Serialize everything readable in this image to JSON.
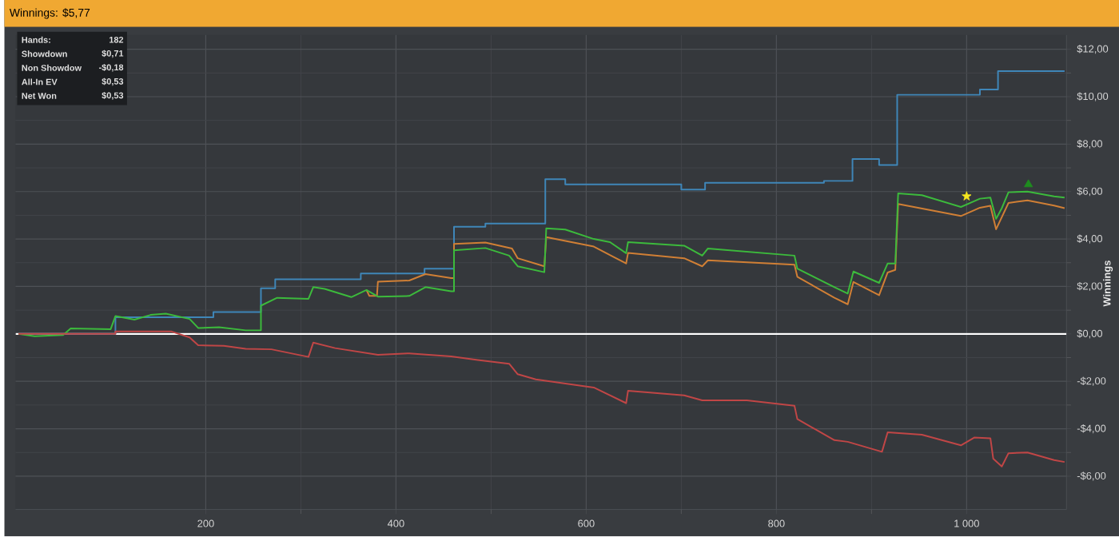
{
  "chart_data": {
    "type": "line",
    "title": "Winnings: $5,77",
    "ylabel": "Winnings",
    "annotations": [
      "Hands:",
      "182",
      "Showdown",
      "$0,71",
      "Non Showdow",
      "-$0,18",
      "All-In EV",
      "$0,53",
      "Net Won",
      "$0,53"
    ],
    "xlim": [
      0,
      1105
    ],
    "ylim": [
      -7.4,
      12.6
    ],
    "xticks": [
      200,
      400,
      600,
      800,
      {
        "value": 1000,
        "label": "1 000"
      }
    ],
    "yticks": [
      {
        "value": -6,
        "label": "-$6,00"
      },
      {
        "value": -4,
        "label": "-$4,00"
      },
      {
        "value": -2,
        "label": "-$2,00"
      },
      {
        "value": 0,
        "label": "$0,00"
      },
      {
        "value": 2,
        "label": "$2,00"
      },
      {
        "value": 4,
        "label": "$4,00"
      },
      {
        "value": 6,
        "label": "$6,00"
      },
      {
        "value": 8,
        "label": "$8,00"
      },
      {
        "value": 10,
        "label": "$10,00"
      },
      {
        "value": 12,
        "label": "$12,00"
      }
    ],
    "grid": true,
    "marker": "none",
    "line_style": "solid",
    "ref_lines": [
      {
        "axis": "y",
        "value": 0,
        "color": "#ffffff"
      }
    ],
    "series": [
      {
        "color": "#3f86b8",
        "x": [
          3,
          105,
          105,
          208,
          208,
          258,
          258,
          273,
          273,
          363,
          363,
          430,
          430,
          461,
          461,
          494,
          494,
          557,
          557,
          578,
          578,
          700,
          700,
          725,
          725,
          850,
          850,
          880,
          880,
          908,
          908,
          927,
          927,
          1014,
          1014,
          1033,
          1033,
          1103
        ],
        "values": [
          0,
          0,
          0.7,
          0.7,
          0.92,
          0.92,
          1.92,
          1.92,
          2.3,
          2.3,
          2.55,
          2.55,
          2.75,
          2.75,
          4.52,
          4.52,
          4.65,
          4.65,
          6.52,
          6.52,
          6.3,
          6.3,
          6.08,
          6.08,
          6.37,
          6.37,
          6.45,
          6.45,
          7.37,
          7.37,
          7.12,
          7.12,
          10.08,
          10.08,
          10.3,
          10.3,
          11.08,
          11.08
        ]
      },
      {
        "color": "#d07f35",
        "x": [
          369,
          372,
          380,
          381,
          414,
          431,
          458,
          461,
          461,
          494,
          522,
          528,
          556,
          558,
          608,
          642,
          644,
          703,
          722,
          728,
          819,
          822,
          861,
          875,
          881,
          908,
          917,
          925,
          928,
          994,
          1014,
          1025,
          1031,
          1044,
          1064,
          1092,
          1103
        ],
        "values": [
          1.85,
          1.6,
          1.6,
          2.2,
          2.25,
          2.52,
          2.35,
          2.35,
          3.79,
          3.85,
          3.6,
          3.19,
          2.85,
          4.08,
          3.68,
          2.97,
          3.41,
          3.19,
          2.85,
          3.1,
          2.92,
          2.41,
          1.52,
          1.25,
          2.19,
          1.63,
          2.59,
          2.7,
          5.48,
          4.97,
          5.32,
          5.4,
          4.41,
          5.52,
          5.63,
          5.41,
          5.3
        ]
      },
      {
        "color": "#3cba3c",
        "x": [
          3,
          20,
          50,
          58,
          100,
          105,
          125,
          142,
          158,
          183,
          192,
          214,
          242,
          258,
          258,
          275,
          308,
          313,
          325,
          353,
          369,
          381,
          414,
          431,
          458,
          461,
          461,
          494,
          519,
          528,
          556,
          558,
          578,
          608,
          625,
          642,
          644,
          703,
          722,
          728,
          819,
          822,
          861,
          875,
          881,
          908,
          917,
          925,
          928,
          953,
          994,
          1014,
          1025,
          1031,
          1037,
          1044,
          1064,
          1092,
          1103
        ],
        "values": [
          0,
          -0.1,
          -0.05,
          0.23,
          0.2,
          0.75,
          0.6,
          0.8,
          0.85,
          0.63,
          0.25,
          0.28,
          0.15,
          0.15,
          1.19,
          1.52,
          1.48,
          1.97,
          1.9,
          1.55,
          1.85,
          1.57,
          1.6,
          1.97,
          1.8,
          1.8,
          3.52,
          3.62,
          3.3,
          2.85,
          2.6,
          4.45,
          4.4,
          4.0,
          3.87,
          3.4,
          3.87,
          3.72,
          3.3,
          3.6,
          3.3,
          2.75,
          1.97,
          1.7,
          2.63,
          2.15,
          2.97,
          2.97,
          5.92,
          5.85,
          5.35,
          5.7,
          5.75,
          4.85,
          5.3,
          5.97,
          6.0,
          5.8,
          5.75
        ]
      },
      {
        "color": "#c04646",
        "x": [
          3,
          105,
          105,
          164,
          183,
          192,
          219,
          242,
          269,
          308,
          313,
          336,
          381,
          414,
          458,
          486,
          519,
          528,
          547,
          608,
          642,
          644,
          703,
          722,
          769,
          819,
          822,
          861,
          875,
          911,
          917,
          953,
          994,
          1008,
          1025,
          1028,
          1037,
          1044,
          1064,
          1092,
          1103
        ],
        "values": [
          0,
          0,
          0.1,
          0.1,
          -0.15,
          -0.48,
          -0.5,
          -0.63,
          -0.65,
          -0.97,
          -0.37,
          -0.6,
          -0.88,
          -0.82,
          -0.95,
          -1.1,
          -1.26,
          -1.7,
          -1.92,
          -2.26,
          -2.92,
          -2.4,
          -2.59,
          -2.8,
          -2.8,
          -3.03,
          -3.59,
          -4.48,
          -4.55,
          -4.97,
          -4.15,
          -4.25,
          -4.7,
          -4.37,
          -4.4,
          -5.26,
          -5.59,
          -5.03,
          -5.0,
          -5.32,
          -5.4
        ]
      },
      {
        "type": "scatter",
        "marker": "star",
        "color": "#f5e61e",
        "x": [
          1000
        ],
        "values": [
          5.8
        ]
      },
      {
        "type": "scatter",
        "marker": "triangle",
        "color": "#1e8c1e",
        "x": [
          1065
        ],
        "values": [
          6.3
        ]
      }
    ]
  }
}
